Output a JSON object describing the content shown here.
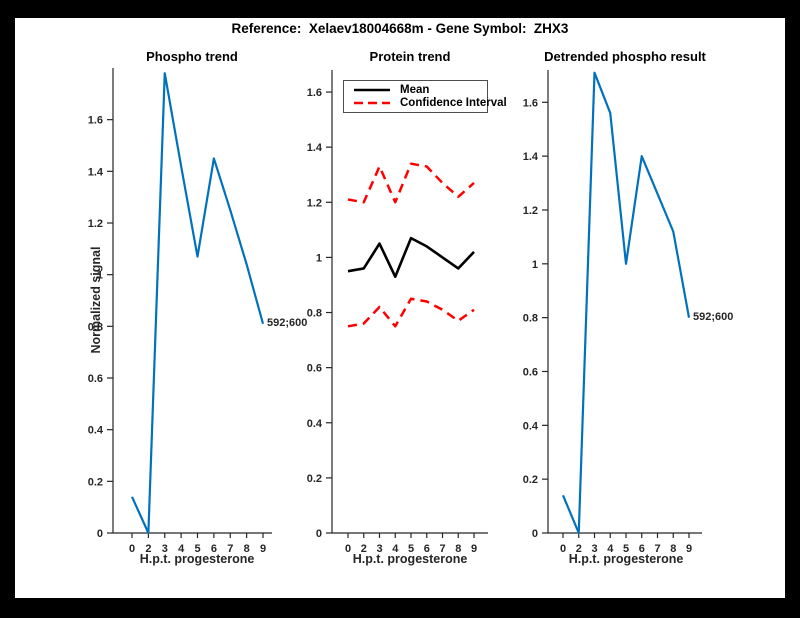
{
  "figure": {
    "title": "Reference:  Xelaev18004668m - Gene Symbol:  ZHX3",
    "background": "#ffffff",
    "frame_color": "#000000"
  },
  "colors": {
    "signal_blue": "#0072BD",
    "ci_red": "#ff0000",
    "mean_black": "#000000",
    "axis_gray": "#262626"
  },
  "chart_data": [
    {
      "type": "line",
      "title": "Phospho trend",
      "xlabel": "H.p.t. progesterone",
      "ylabel": "Normalized signal",
      "categories": [
        "0",
        "2",
        "3",
        "4",
        "5",
        "6",
        "7",
        "8",
        "9"
      ],
      "ylim": [
        0,
        1.8
      ],
      "yticks": [
        0,
        0.2,
        0.4,
        0.6,
        0.8,
        1,
        1.2,
        1.4,
        1.6
      ],
      "grid": false,
      "legend": null,
      "series": [
        {
          "name": "phospho-signal",
          "color": "#0072BD",
          "style": "solid",
          "values": [
            0.14,
            0,
            1.78,
            1.42,
            1.07,
            1.45,
            1.25,
            1.04,
            0.81
          ]
        }
      ],
      "annotation": {
        "text": "592;600",
        "attached_to": "last-point"
      }
    },
    {
      "type": "line",
      "title": "Protein trend",
      "xlabel": "H.p.t. progesterone",
      "ylabel": "",
      "categories": [
        "0",
        "2",
        "3",
        "4",
        "5",
        "6",
        "7",
        "8",
        "9"
      ],
      "ylim": [
        0,
        1.68
      ],
      "yticks": [
        0,
        0.2,
        0.4,
        0.6,
        0.8,
        1,
        1.2,
        1.4,
        1.6
      ],
      "grid": false,
      "legend": {
        "position": "top-left",
        "entries": [
          {
            "label": "Mean",
            "color": "#000000",
            "style": "solid"
          },
          {
            "label": "Confidence Interval",
            "color": "#ff0000",
            "style": "dashed"
          }
        ]
      },
      "series": [
        {
          "name": "confidence-upper",
          "color": "#ff0000",
          "style": "dashed",
          "values": [
            1.21,
            1.2,
            1.33,
            1.2,
            1.34,
            1.33,
            1.27,
            1.22,
            1.27
          ]
        },
        {
          "name": "mean",
          "color": "#000000",
          "style": "solid",
          "values": [
            0.95,
            0.96,
            1.05,
            0.93,
            1.07,
            1.04,
            1.0,
            0.96,
            1.02
          ]
        },
        {
          "name": "confidence-lower",
          "color": "#ff0000",
          "style": "dashed",
          "values": [
            0.75,
            0.76,
            0.82,
            0.75,
            0.85,
            0.84,
            0.81,
            0.77,
            0.81
          ]
        }
      ],
      "annotation": null
    },
    {
      "type": "line",
      "title": "Detrended phospho result",
      "xlabel": "H.p.t. progesterone",
      "ylabel": "",
      "categories": [
        "0",
        "2",
        "3",
        "4",
        "5",
        "6",
        "7",
        "8",
        "9"
      ],
      "ylim": [
        0,
        1.72
      ],
      "yticks": [
        0,
        0.2,
        0.4,
        0.6,
        0.8,
        1,
        1.2,
        1.4,
        1.6
      ],
      "grid": false,
      "legend": null,
      "series": [
        {
          "name": "detrended-signal",
          "color": "#0072BD",
          "style": "solid",
          "values": [
            0.14,
            0,
            1.71,
            1.56,
            1.0,
            1.4,
            1.26,
            1.12,
            0.8
          ]
        }
      ],
      "annotation": {
        "text": "592;600",
        "attached_to": "last-point"
      }
    }
  ]
}
